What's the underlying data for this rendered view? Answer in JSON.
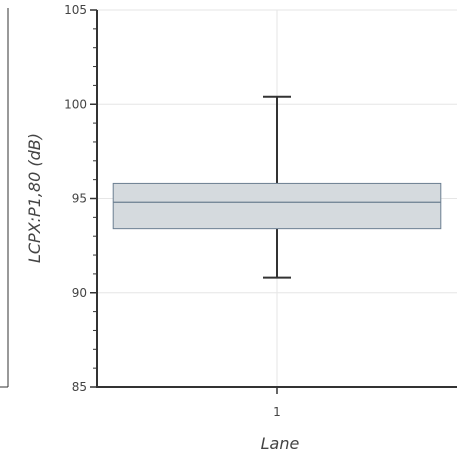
{
  "chart_data": {
    "type": "box",
    "xlabel": "Lane",
    "ylabel": "LCPX:P1,80 (dB)",
    "categories": [
      "1"
    ],
    "ylim": [
      85,
      105
    ],
    "yticks": [
      85,
      90,
      95,
      100,
      105
    ],
    "grid": true,
    "boxes": [
      {
        "category": "1",
        "whisker_low": 90.8,
        "q1": 93.4,
        "median": 94.8,
        "q3": 95.8,
        "whisker_high": 100.4
      }
    ],
    "colors": {
      "box_fill": "#d5dade",
      "box_stroke": "#6b7f91",
      "whisker": "#333333",
      "axis": "#333333",
      "grid": "#e6e6e6"
    }
  }
}
